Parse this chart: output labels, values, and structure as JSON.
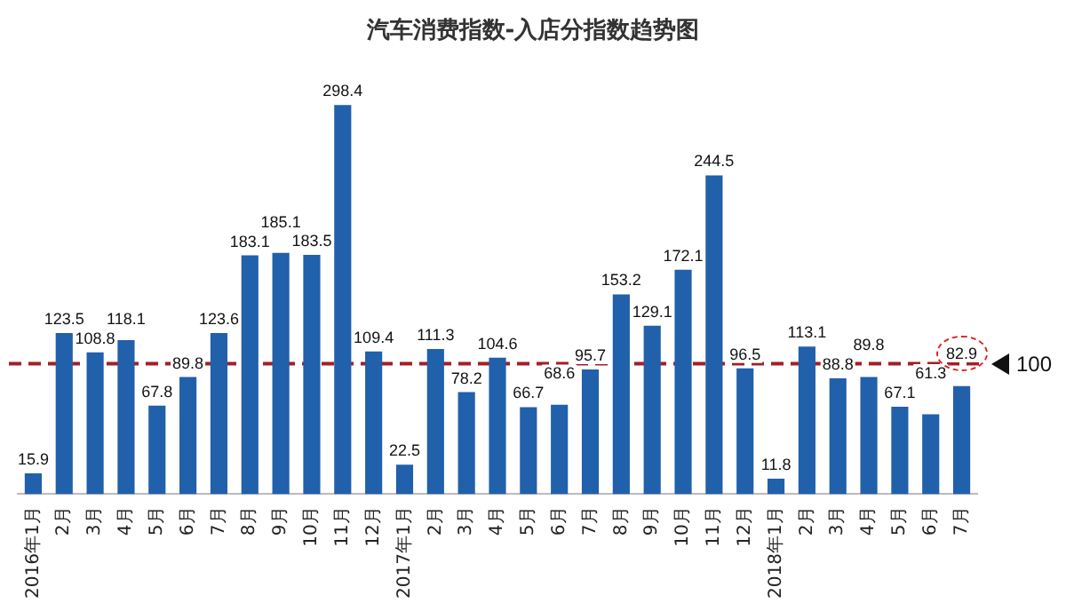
{
  "chart_data": {
    "type": "bar",
    "title": "汽车消费指数-入店分指数趋势图",
    "categories": [
      "2016年1月",
      "2月",
      "3月",
      "4月",
      "5月",
      "6月",
      "7月",
      "8月",
      "9月",
      "10月",
      "11月",
      "12月",
      "2017年1月",
      "2月",
      "3月",
      "4月",
      "5月",
      "6月",
      "7月",
      "8月",
      "9月",
      "10月",
      "11月",
      "12月",
      "2018年1月",
      "2月",
      "3月",
      "4月",
      "5月",
      "6月",
      "7月"
    ],
    "values": [
      15.9,
      123.5,
      108.8,
      118.1,
      67.8,
      89.8,
      123.6,
      183.1,
      185.1,
      183.5,
      298.4,
      109.4,
      22.5,
      111.3,
      78.2,
      104.6,
      66.7,
      68.6,
      95.7,
      153.2,
      129.1,
      172.1,
      244.5,
      96.5,
      11.8,
      113.1,
      88.8,
      89.8,
      67.1,
      61.3,
      82.9
    ],
    "color": "#2160aa",
    "data_labels": true,
    "tick_labels": "x",
    "grid": false,
    "legend": false,
    "ref_lines": [
      {
        "axis": "y",
        "value": 100,
        "label": "100",
        "color": "#a31f24",
        "line_style": "dashed"
      }
    ]
  }
}
